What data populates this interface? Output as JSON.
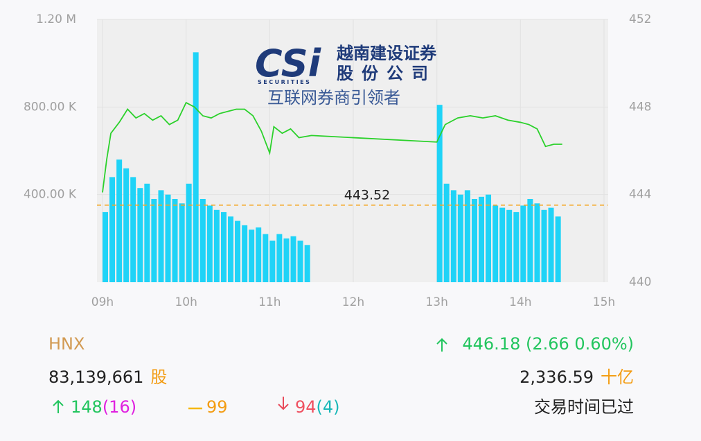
{
  "chart_data": {
    "type": "bar",
    "xlim": [
      9,
      15
    ],
    "xticks": [
      {
        "value": 9,
        "label": "09h"
      },
      {
        "value": 10,
        "label": "10h"
      },
      {
        "value": 11,
        "label": "11h"
      },
      {
        "value": 12,
        "label": "12h"
      },
      {
        "value": 13,
        "label": "13h"
      },
      {
        "value": 14,
        "label": "14h"
      },
      {
        "value": 15,
        "label": "15h"
      }
    ],
    "ylim": [
      0,
      1200000
    ],
    "yticks": [
      {
        "value": 400000,
        "label": "400.00 K"
      },
      {
        "value": 800000,
        "label": "800.00 K"
      },
      {
        "value": 1200000,
        "label": "1.20 M"
      }
    ],
    "y2lim": [
      440,
      452
    ],
    "y2ticks": [
      440,
      444,
      448,
      452
    ],
    "grid": true,
    "reference": {
      "value": 443.52,
      "label": "443.52",
      "axis": "y2",
      "color": "#f5a623"
    },
    "series": [
      {
        "type": "bar",
        "color": "#1fd3f7",
        "x": [
          9.0,
          9.083,
          9.167,
          9.25,
          9.333,
          9.417,
          9.5,
          9.583,
          9.667,
          9.75,
          9.833,
          9.917,
          10.0,
          10.083,
          10.167,
          10.25,
          10.333,
          10.417,
          10.5,
          10.583,
          10.667,
          10.75,
          10.833,
          10.917,
          11.0,
          11.083,
          11.167,
          11.25,
          11.333,
          11.417,
          13.0,
          13.083,
          13.167,
          13.25,
          13.333,
          13.417,
          13.5,
          13.583,
          13.667,
          13.75,
          13.833,
          13.917,
          14.0,
          14.083,
          14.167,
          14.25,
          14.333,
          14.417
        ],
        "values": [
          320000,
          480000,
          560000,
          520000,
          480000,
          430000,
          450000,
          380000,
          420000,
          400000,
          380000,
          360000,
          450000,
          1050000,
          380000,
          350000,
          330000,
          320000,
          300000,
          280000,
          260000,
          240000,
          250000,
          220000,
          190000,
          220000,
          200000,
          210000,
          190000,
          170000,
          810000,
          450000,
          420000,
          400000,
          420000,
          380000,
          390000,
          400000,
          350000,
          340000,
          330000,
          320000,
          350000,
          380000,
          360000,
          330000,
          340000,
          300000
        ]
      },
      {
        "type": "line",
        "color": "#2bd12b",
        "axis": "y2",
        "x": [
          9.0,
          9.05,
          9.1,
          9.2,
          9.3,
          9.4,
          9.5,
          9.6,
          9.7,
          9.8,
          9.9,
          10.0,
          10.1,
          10.2,
          10.3,
          10.4,
          10.5,
          10.6,
          10.7,
          10.8,
          10.9,
          11.0,
          11.05,
          11.15,
          11.25,
          11.35,
          11.5,
          13.0,
          13.1,
          13.25,
          13.4,
          13.55,
          13.7,
          13.85,
          14.0,
          14.1,
          14.2,
          14.3,
          14.4,
          14.5
        ],
        "values": [
          444.1,
          445.6,
          446.8,
          447.3,
          447.9,
          447.5,
          447.7,
          447.4,
          447.6,
          447.2,
          447.4,
          448.2,
          448.0,
          447.6,
          447.5,
          447.7,
          447.8,
          447.9,
          447.9,
          447.6,
          446.9,
          445.9,
          447.1,
          446.8,
          447.0,
          446.6,
          446.7,
          446.4,
          447.2,
          447.5,
          447.6,
          447.5,
          447.6,
          447.4,
          447.3,
          447.2,
          447.0,
          446.2,
          446.3,
          446.3
        ]
      }
    ]
  },
  "logo": {
    "mark": "CSi",
    "tagline": "SECURITIES",
    "name1": "越南建设证券",
    "name2": "股份公司",
    "slogan": "互联网券商引领者"
  },
  "info": {
    "exchange": "HNX",
    "index": "446.18 (2.66 0.60%)",
    "volume": "83,139,661",
    "volume_unit": "股",
    "value": "2,336.59",
    "value_unit": "十亿",
    "up": "148",
    "up_ceiling": "(16)",
    "flat": "99",
    "down": "94",
    "down_floor": "(4)",
    "status": "交易时间已过"
  }
}
